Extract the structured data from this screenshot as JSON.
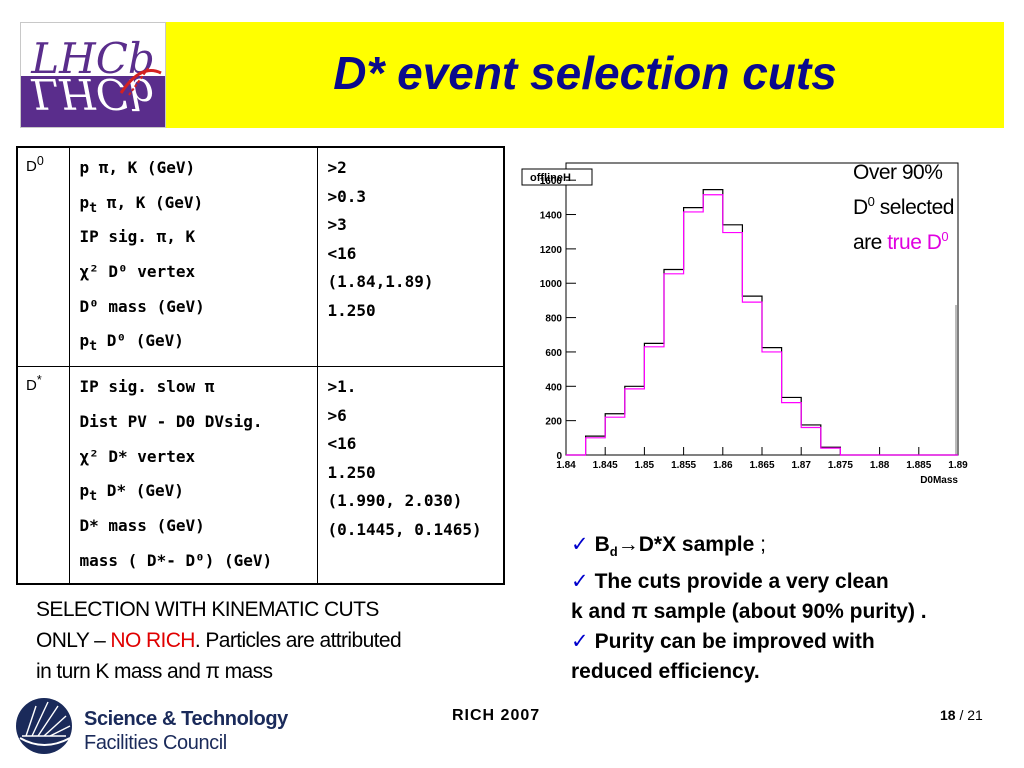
{
  "header": {
    "title": "D* event selection cuts",
    "logo": {
      "text_top": "LHCb",
      "text_mirror": "LHCb",
      "colors": {
        "purple": "#5a2d8c",
        "red": "#d42020"
      }
    }
  },
  "cuts_table": {
    "rows": [
      {
        "particle": "D",
        "particle_sup": "0",
        "variables": [
          {
            "pre": "p  ",
            "sub": "",
            "post": "π, K (GeV)"
          },
          {
            "pre": "p",
            "sub": "t",
            "post": " π, K (GeV)"
          },
          {
            "pre": "IP sig. π, K",
            "sub": "",
            "post": ""
          },
          {
            "pre": "χ² D⁰ vertex",
            "sub": "",
            "post": ""
          },
          {
            "pre": "D⁰ mass (GeV)",
            "sub": "",
            "post": ""
          },
          {
            "pre": "p",
            "sub": "t",
            "post": " D⁰ (GeV)"
          }
        ],
        "values": [
          ">2",
          ">0.3",
          ">3",
          "<16",
          "(1.84,1.89)",
          "1.250"
        ]
      },
      {
        "particle": "D",
        "particle_sup": "*",
        "variables": [
          {
            "pre": "IP sig. slow π",
            "sub": "",
            "post": ""
          },
          {
            "pre": "Dist  PV - D0 DVsig.",
            "sub": "",
            "post": ""
          },
          {
            "pre": "χ² D* vertex",
            "sub": "",
            "post": ""
          },
          {
            "pre": "p",
            "sub": "t",
            "post": " D* (GeV)"
          },
          {
            "pre": "D* mass (GeV)",
            "sub": "",
            "post": ""
          },
          {
            "pre": "mass ( D*- D⁰) (GeV)",
            "sub": "",
            "post": ""
          }
        ],
        "values": [
          ">1.",
          ">6",
          "<16",
          "1.250",
          "(1.990, 2.030)",
          " (0.1445, 0.1465)"
        ]
      }
    ]
  },
  "histogram": {
    "label": "offlineH",
    "x_title": "D0Mass",
    "x_ticks": [
      "1.84",
      "1.845",
      "1.85",
      "1.855",
      "1.86",
      "1.865",
      "1.87",
      "1.875",
      "1.88",
      "1.885",
      "1.89"
    ],
    "y_ticks": [
      "0",
      "200",
      "400",
      "600",
      "800",
      "1000",
      "1200",
      "1400",
      "1600"
    ],
    "x_range": [
      1.84,
      1.89
    ],
    "y_range": [
      0,
      1700
    ],
    "bin_edges": [
      1.84,
      1.8425,
      1.845,
      1.8475,
      1.85,
      1.8525,
      1.855,
      1.8575,
      1.86,
      1.8625,
      1.865,
      1.8675,
      1.87,
      1.8725,
      1.875,
      1.8775,
      1.88,
      1.8825,
      1.885,
      1.8875,
      1.89
    ],
    "all_counts": [
      0,
      110,
      240,
      400,
      650,
      1080,
      1440,
      1545,
      1340,
      925,
      625,
      335,
      175,
      45,
      0,
      0,
      0,
      0,
      0,
      0
    ],
    "true_counts": [
      0,
      100,
      220,
      385,
      630,
      1055,
      1415,
      1515,
      1295,
      890,
      600,
      305,
      160,
      40,
      0,
      0,
      0,
      0,
      0,
      0
    ],
    "colors": {
      "all": "#000000",
      "true": "#ff00ff"
    }
  },
  "annotation": {
    "line1": "Over 90%",
    "line2_pre": "D",
    "line2_sup": "0",
    "line2_post": " selected",
    "line3_pre": "are ",
    "line3_mag": "true D",
    "line3_sup": "0"
  },
  "bullets": {
    "b1_pre": "B",
    "b1_sub": "d",
    "b1_post": "→D*X sample",
    "b1_tail": " ;",
    "b2_l1": "The cuts provide a very clean",
    "b2_l2": "k  and  π sample (about 90% purity) .",
    "b3_l1": "Purity can be improved with",
    "b3_l2": "reduced efficiency."
  },
  "selection_note": {
    "line1": "SELECTION WITH KINEMATIC CUTS",
    "line2_pre": "ONLY – ",
    "line2_red": "NO RICH",
    "line2_post": ".   Particles are attributed",
    "line3": "in turn K mass and  π mass"
  },
  "footer": {
    "org_line1": "Science & Technology",
    "org_line2": "Facilities Council",
    "center": "RICH 2007",
    "page_current": "18",
    "page_sep": " / ",
    "page_total": "21"
  }
}
